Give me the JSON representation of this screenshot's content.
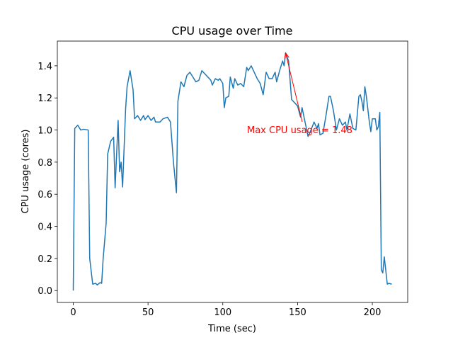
{
  "chart_data": {
    "type": "line",
    "title": "CPU usage over Time",
    "x_label": "Time (sec)",
    "y_label": "CPU usage (cores)",
    "x": [
      0,
      1,
      3,
      5,
      7,
      10,
      11,
      13,
      15,
      16,
      18,
      19,
      20,
      22,
      23,
      25,
      27,
      28,
      30,
      31,
      32,
      33,
      35,
      36,
      38,
      40,
      41,
      43,
      45,
      47,
      48,
      50,
      52,
      54,
      55,
      58,
      60,
      63,
      65,
      67,
      69,
      70,
      72,
      74,
      76,
      78,
      80,
      82,
      84,
      86,
      88,
      90,
      92,
      93,
      95,
      97,
      98,
      100,
      101,
      102,
      104,
      105,
      107,
      108,
      110,
      112,
      114,
      116,
      117,
      119,
      121,
      123,
      125,
      127,
      129,
      131,
      133,
      135,
      136,
      138,
      140,
      141,
      142,
      144,
      146,
      148,
      150,
      152,
      153,
      155,
      157,
      159,
      161,
      163,
      164,
      165,
      167,
      169,
      171,
      172,
      174,
      176,
      178,
      180,
      182,
      183,
      185,
      187,
      189,
      191,
      192,
      193,
      194,
      195,
      196,
      198,
      199,
      200,
      202,
      203,
      204,
      205,
      206,
      207,
      208,
      210,
      211,
      213
    ],
    "series": [
      {
        "name": "CPU usage",
        "color": "#1f77b4",
        "values": [
          0.0,
          1.01,
          1.03,
          1.0,
          1.005,
          1.0,
          0.2,
          0.04,
          0.045,
          0.035,
          0.05,
          0.045,
          0.2,
          0.42,
          0.85,
          0.93,
          0.955,
          0.64,
          1.06,
          0.74,
          0.8,
          0.645,
          1.13,
          1.27,
          1.37,
          1.25,
          1.07,
          1.09,
          1.06,
          1.09,
          1.065,
          1.09,
          1.06,
          1.08,
          1.05,
          1.05,
          1.07,
          1.08,
          1.05,
          0.8,
          0.61,
          1.18,
          1.3,
          1.27,
          1.34,
          1.36,
          1.33,
          1.3,
          1.31,
          1.37,
          1.35,
          1.33,
          1.31,
          1.28,
          1.32,
          1.31,
          1.32,
          1.29,
          1.14,
          1.2,
          1.21,
          1.33,
          1.26,
          1.32,
          1.28,
          1.29,
          1.27,
          1.39,
          1.37,
          1.4,
          1.36,
          1.32,
          1.29,
          1.22,
          1.36,
          1.32,
          1.32,
          1.36,
          1.3,
          1.37,
          1.43,
          1.4,
          1.48,
          1.43,
          1.19,
          1.17,
          1.15,
          1.08,
          1.14,
          1.05,
          0.96,
          1.0,
          1.05,
          1.01,
          1.04,
          0.97,
          0.98,
          1.09,
          1.21,
          1.21,
          1.12,
          1.0,
          1.07,
          1.03,
          1.05,
          1.0,
          1.1,
          1.01,
          1.0,
          1.21,
          1.22,
          1.18,
          1.12,
          1.27,
          1.21,
          1.05,
          0.99,
          1.07,
          1.07,
          1.0,
          1.02,
          1.11,
          0.13,
          0.11,
          0.21,
          0.04,
          0.045,
          0.04
        ]
      }
    ],
    "xlim": [
      -10.65,
      223.65
    ],
    "ylim": [
      -0.074,
      1.554
    ],
    "xticks": [
      0,
      50,
      100,
      150,
      200
    ],
    "yticks": [
      {
        "value": 0,
        "label": "0.0"
      },
      0.2,
      0.4,
      0.6,
      0.8,
      {
        "value": 1,
        "label": "1.0"
      },
      1.2,
      1.4
    ],
    "annotation": {
      "text": "Max CPU usage = 1.48",
      "x": 142,
      "y": 1.48,
      "color": "red"
    }
  }
}
